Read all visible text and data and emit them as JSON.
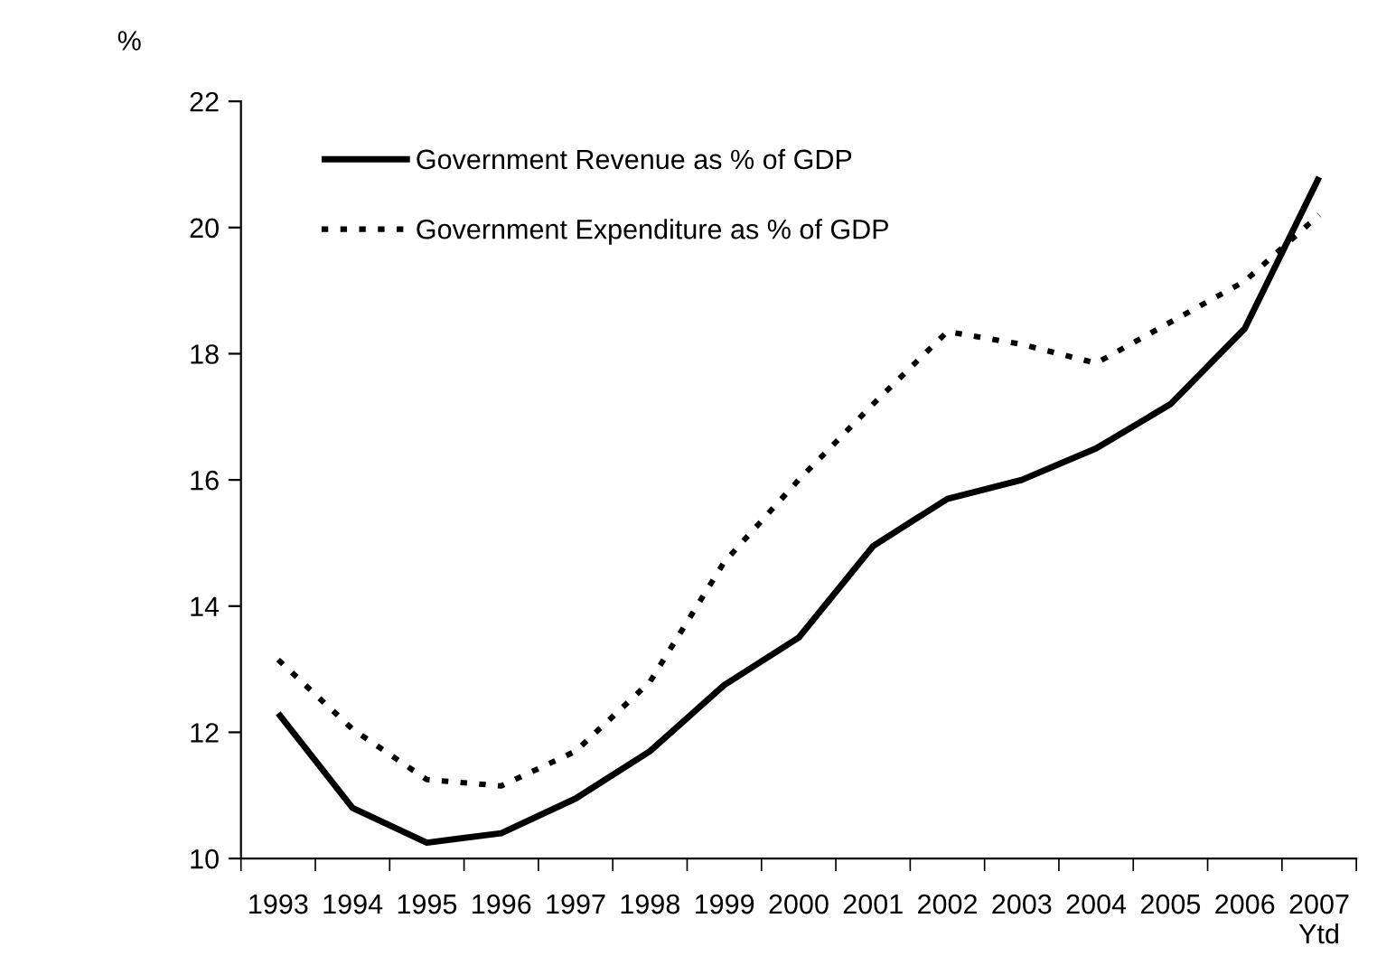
{
  "chart_data": {
    "type": "line",
    "ylabel": "%",
    "categories": [
      "1993",
      "1994",
      "1995",
      "1996",
      "1997",
      "1998",
      "1999",
      "2000",
      "2001",
      "2002",
      "2003",
      "2004",
      "2005",
      "2006",
      "2007\nYtd"
    ],
    "series": [
      {
        "name": "Government Revenue as % of GDP",
        "color": "#000000",
        "line_style": "solid",
        "values": [
          12.3,
          10.8,
          10.25,
          10.4,
          10.95,
          11.7,
          12.75,
          13.5,
          14.95,
          15.7,
          16.0,
          16.5,
          17.2,
          18.4,
          20.8
        ]
      },
      {
        "name": "Government Expenditure as % of GDP",
        "color": "#000000",
        "line_style": "dotted",
        "values": [
          13.15,
          12.05,
          11.25,
          11.15,
          11.7,
          12.8,
          14.7,
          16.0,
          17.2,
          18.35,
          18.15,
          17.85,
          18.5,
          19.15,
          20.2
        ]
      }
    ],
    "ylim": [
      10,
      22
    ],
    "yticks": [
      10,
      12,
      14,
      16,
      18,
      20,
      22
    ],
    "grid": false,
    "legend": "top left",
    "marker": "none"
  }
}
